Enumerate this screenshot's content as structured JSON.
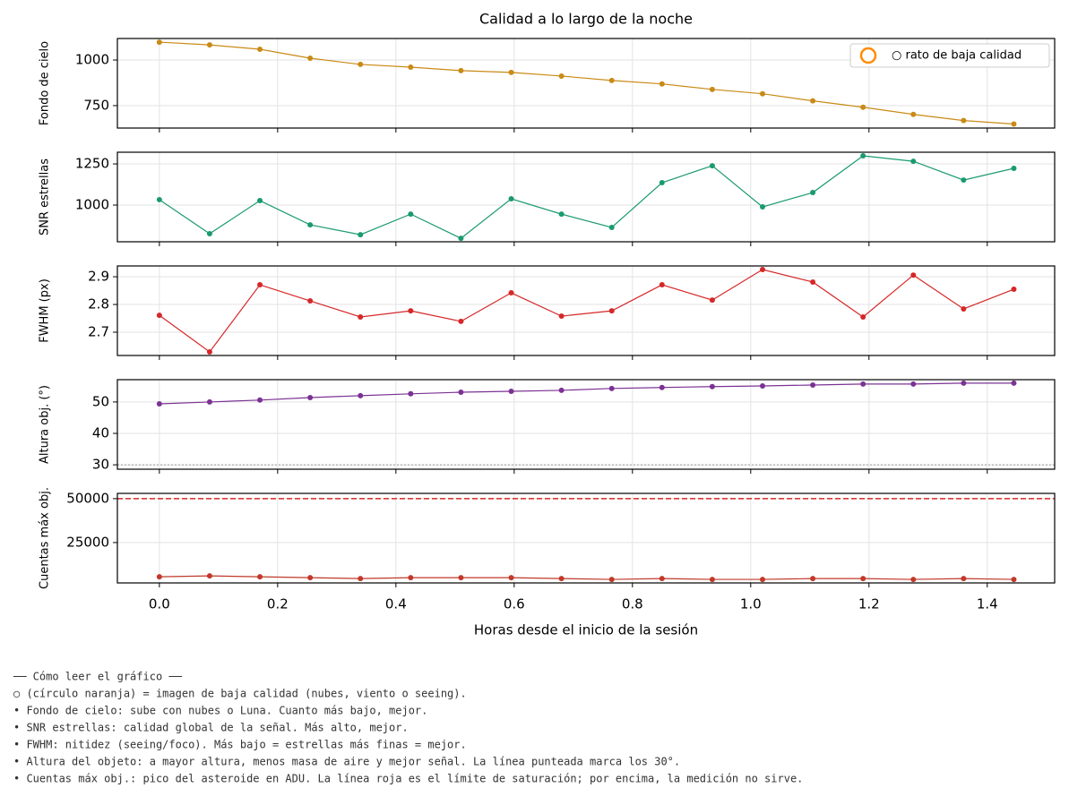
{
  "chart_data": [
    {
      "type": "line",
      "title": "Calidad a lo largo de la noche",
      "y_label": "Fondo de cielo",
      "color": "#c98a16",
      "x": [
        0,
        0.085,
        0.17,
        0.255,
        0.34,
        0.425,
        0.51,
        0.595,
        0.68,
        0.765,
        0.85,
        0.935,
        1.02,
        1.105,
        1.19,
        1.275,
        1.36,
        1.445
      ],
      "values": [
        1098,
        1083,
        1059,
        1010,
        976,
        961,
        942,
        932,
        912,
        888,
        869,
        839,
        815,
        776,
        741,
        702,
        668,
        649
      ],
      "xlim": [
        -0.071,
        1.514
      ],
      "xticks": [
        {
          "value": 0,
          "label": "0.0"
        },
        0.2,
        0.4,
        0.6,
        0.8,
        {
          "value": 1,
          "label": "1.0"
        },
        1.2,
        1.4
      ],
      "ylim": [
        627,
        1118
      ],
      "yticks": [
        750,
        1000
      ],
      "grid": true,
      "legend": {
        "label": "○ rato de baja calidad",
        "color": "#ff8c00",
        "loc": "upper right"
      }
    },
    {
      "type": "line",
      "y_label": "SNR estrellas",
      "color": "#1a9a6e",
      "x": [
        0,
        0.085,
        0.17,
        0.255,
        0.34,
        0.425,
        0.51,
        0.595,
        0.68,
        0.765,
        0.85,
        0.935,
        1.02,
        1.105,
        1.19,
        1.275,
        1.36,
        1.445
      ],
      "values": [
        1033,
        826,
        1027,
        880,
        820,
        945,
        798,
        1038,
        945,
        864,
        1136,
        1239,
        989,
        1076,
        1299,
        1266,
        1152,
        1223
      ],
      "xlim": [
        -0.071,
        1.514
      ],
      "xticks": [
        {
          "value": 0,
          "label": "0.0"
        },
        0.2,
        0.4,
        0.6,
        0.8,
        {
          "value": 1,
          "label": "1.0"
        },
        1.2,
        1.4
      ],
      "ylim": [
        777,
        1321
      ],
      "yticks": [
        1000,
        1250
      ],
      "grid": true
    },
    {
      "type": "line",
      "y_label": "FWHM (px)",
      "color": "#d62728",
      "x": [
        0,
        0.085,
        0.17,
        0.255,
        0.34,
        0.425,
        0.51,
        0.595,
        0.68,
        0.765,
        0.85,
        0.935,
        1.02,
        1.105,
        1.19,
        1.275,
        1.36,
        1.445
      ],
      "values": [
        2.761,
        2.629,
        2.871,
        2.813,
        2.755,
        2.777,
        2.739,
        2.842,
        2.758,
        2.777,
        2.871,
        2.816,
        2.926,
        2.881,
        2.755,
        2.906,
        2.784,
        2.855
      ],
      "xlim": [
        -0.071,
        1.514
      ],
      "xticks": [
        {
          "value": 0,
          "label": "0.0"
        },
        0.2,
        0.4,
        0.6,
        0.8,
        {
          "value": 1,
          "label": "1.0"
        },
        1.2,
        1.4
      ],
      "ylim": [
        2.616,
        2.939
      ],
      "yticks": [
        2.7,
        2.8,
        2.9
      ],
      "grid": true
    },
    {
      "type": "line",
      "y_label": "Altura obj. (°)",
      "color": "#7b3294",
      "x": [
        0,
        0.085,
        0.17,
        0.255,
        0.34,
        0.425,
        0.51,
        0.595,
        0.68,
        0.765,
        0.85,
        0.935,
        1.02,
        1.105,
        1.19,
        1.275,
        1.36,
        1.445
      ],
      "values": [
        49.4,
        50.0,
        50.6,
        51.4,
        52.0,
        52.6,
        53.1,
        53.4,
        53.7,
        54.3,
        54.6,
        54.9,
        55.1,
        55.4,
        55.7,
        55.7,
        56.0,
        56.0
      ],
      "xlim": [
        -0.071,
        1.514
      ],
      "xticks": [
        {
          "value": 0,
          "label": "0.0"
        },
        0.2,
        0.4,
        0.6,
        0.8,
        {
          "value": 1,
          "label": "1.0"
        },
        1.2,
        1.4
      ],
      "ylim": [
        28.6,
        57.1
      ],
      "yticks": [
        30,
        40,
        50
      ],
      "grid": true,
      "hlines": [
        {
          "value": 30,
          "color": "#999999",
          "style": "dotted"
        }
      ]
    },
    {
      "type": "line",
      "y_label": "Cuentas máx obj.",
      "x_label": "Horas desde el inicio de la sesión",
      "color": "#c0392b",
      "x": [
        0,
        0.085,
        0.17,
        0.255,
        0.34,
        0.425,
        0.51,
        0.595,
        0.68,
        0.765,
        0.85,
        0.935,
        1.02,
        1.105,
        1.19,
        1.275,
        1.36,
        1.445
      ],
      "values": [
        5500,
        6000,
        5500,
        5000,
        4500,
        5000,
        5000,
        5000,
        4500,
        4000,
        4500,
        4000,
        4000,
        4500,
        4500,
        4000,
        4500,
        4000
      ],
      "xlim": [
        -0.071,
        1.514
      ],
      "xticks": [
        {
          "value": 0,
          "label": "0.0"
        },
        0.2,
        0.4,
        0.6,
        0.8,
        {
          "value": 1,
          "label": "1.0"
        },
        1.2,
        1.4
      ],
      "ylim": [
        2000,
        53000
      ],
      "yticks": [
        25000,
        50000
      ],
      "grid": true,
      "hlines": [
        {
          "value": 50000,
          "color": "#d62728",
          "style": "dashed"
        }
      ]
    }
  ],
  "notes": {
    "heading": "── Cómo leer el gráfico ──",
    "lines": [
      "○ (círculo naranja) = imagen de baja calidad (nubes, viento o seeing).",
      "• Fondo de cielo: sube con nubes o Luna. Cuanto más bajo, mejor.",
      "• SNR estrellas: calidad global de la señal. Más alto, mejor.",
      "• FWHM: nitidez (seeing/foco). Más bajo = estrellas más finas = mejor.",
      "• Altura del objeto: a mayor altura, menos masa de aire y mejor señal. La línea punteada marca los 30°.",
      "• Cuentas máx obj.: pico del asteroide en ADU. La línea roja es el límite de saturación; por encima, la medición no sirve."
    ]
  }
}
